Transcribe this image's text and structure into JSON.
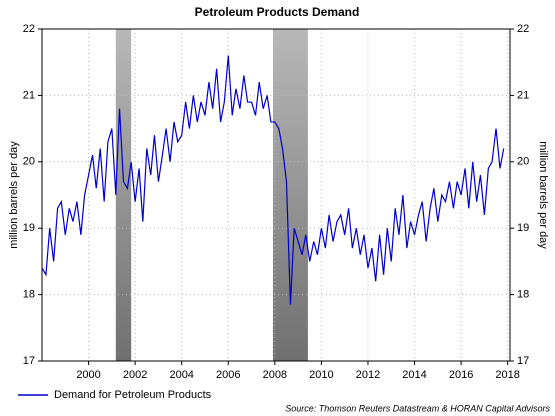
{
  "chart_data": {
    "type": "line",
    "title": "Petroleum Products Demand",
    "ylabel": "million barrels per day",
    "y2label": "million barrels per day",
    "source": "Source: Thomson Reuters Datastream & HORAN Capital Advisors",
    "x": [
      1998,
      1998.17,
      1998.33,
      1998.5,
      1998.67,
      1998.83,
      1999,
      1999.17,
      1999.33,
      1999.5,
      1999.67,
      1999.83,
      2000,
      2000.17,
      2000.33,
      2000.5,
      2000.67,
      2000.83,
      2001,
      2001.17,
      2001.33,
      2001.5,
      2001.67,
      2001.83,
      2002,
      2002.17,
      2002.33,
      2002.5,
      2002.67,
      2002.83,
      2003,
      2003.17,
      2003.33,
      2003.5,
      2003.67,
      2003.83,
      2004,
      2004.17,
      2004.33,
      2004.5,
      2004.67,
      2004.83,
      2005,
      2005.17,
      2005.33,
      2005.5,
      2005.67,
      2005.83,
      2006,
      2006.17,
      2006.33,
      2006.5,
      2006.67,
      2006.83,
      2007,
      2007.17,
      2007.33,
      2007.5,
      2007.67,
      2007.83,
      2008,
      2008.17,
      2008.33,
      2008.5,
      2008.67,
      2008.83,
      2009,
      2009.17,
      2009.33,
      2009.5,
      2009.67,
      2009.83,
      2010,
      2010.17,
      2010.33,
      2010.5,
      2010.67,
      2010.83,
      2011,
      2011.17,
      2011.33,
      2011.5,
      2011.67,
      2011.83,
      2012,
      2012.17,
      2012.33,
      2012.5,
      2012.67,
      2012.83,
      2013,
      2013.17,
      2013.33,
      2013.5,
      2013.67,
      2013.83,
      2014,
      2014.17,
      2014.33,
      2014.5,
      2014.67,
      2014.83,
      2015,
      2015.17,
      2015.33,
      2015.5,
      2015.67,
      2015.83,
      2016,
      2016.17,
      2016.33,
      2016.5,
      2016.67,
      2016.83,
      2017,
      2017.17,
      2017.33,
      2017.5,
      2017.67,
      2017.83
    ],
    "series": [
      {
        "name": "Demand for Petroleum Products",
        "color": "#0000cc",
        "values": [
          18.4,
          18.3,
          19.0,
          18.5,
          19.3,
          19.4,
          18.9,
          19.3,
          19.1,
          19.4,
          18.9,
          19.5,
          19.8,
          20.1,
          19.6,
          20.2,
          19.4,
          20.3,
          20.5,
          19.5,
          20.8,
          19.7,
          19.6,
          20.0,
          19.4,
          19.9,
          19.1,
          20.2,
          19.8,
          20.4,
          19.7,
          20.1,
          20.5,
          20.0,
          20.6,
          20.3,
          20.4,
          20.9,
          20.5,
          21.0,
          20.6,
          20.9,
          20.7,
          21.2,
          20.8,
          21.4,
          20.6,
          20.9,
          21.6,
          20.7,
          21.1,
          20.8,
          21.3,
          20.9,
          20.9,
          20.7,
          21.2,
          20.8,
          21.0,
          20.6,
          20.6,
          20.5,
          20.2,
          19.7,
          17.85,
          19.0,
          18.8,
          18.6,
          18.9,
          18.5,
          18.8,
          18.6,
          19.0,
          18.7,
          19.2,
          18.8,
          19.1,
          19.2,
          18.9,
          19.3,
          18.7,
          19.0,
          18.6,
          18.9,
          18.4,
          18.7,
          18.2,
          18.9,
          18.3,
          19.0,
          18.5,
          19.3,
          18.9,
          19.5,
          18.7,
          19.1,
          18.9,
          19.2,
          19.4,
          18.8,
          19.3,
          19.6,
          19.1,
          19.5,
          19.4,
          19.7,
          19.3,
          19.7,
          19.5,
          19.9,
          19.3,
          20.0,
          19.4,
          19.8,
          19.2,
          19.9,
          20.0,
          20.5,
          19.9,
          20.2
        ]
      }
    ],
    "shaded_regions": [
      [
        2001.17,
        2001.83
      ],
      [
        2007.92,
        2009.42
      ]
    ],
    "xlim": [
      1998,
      2018.1
    ],
    "xticks": [
      2000,
      2002,
      2004,
      2006,
      2008,
      2010,
      2012,
      2014,
      2016,
      2018
    ],
    "ylim": [
      17,
      22
    ],
    "yticks": [
      17,
      18,
      19,
      20,
      21,
      22
    ],
    "y2lim": [
      17,
      22
    ],
    "y2ticks": [
      17,
      18,
      19,
      20,
      21,
      22
    ],
    "grid": true,
    "legend": "bottom-left"
  }
}
